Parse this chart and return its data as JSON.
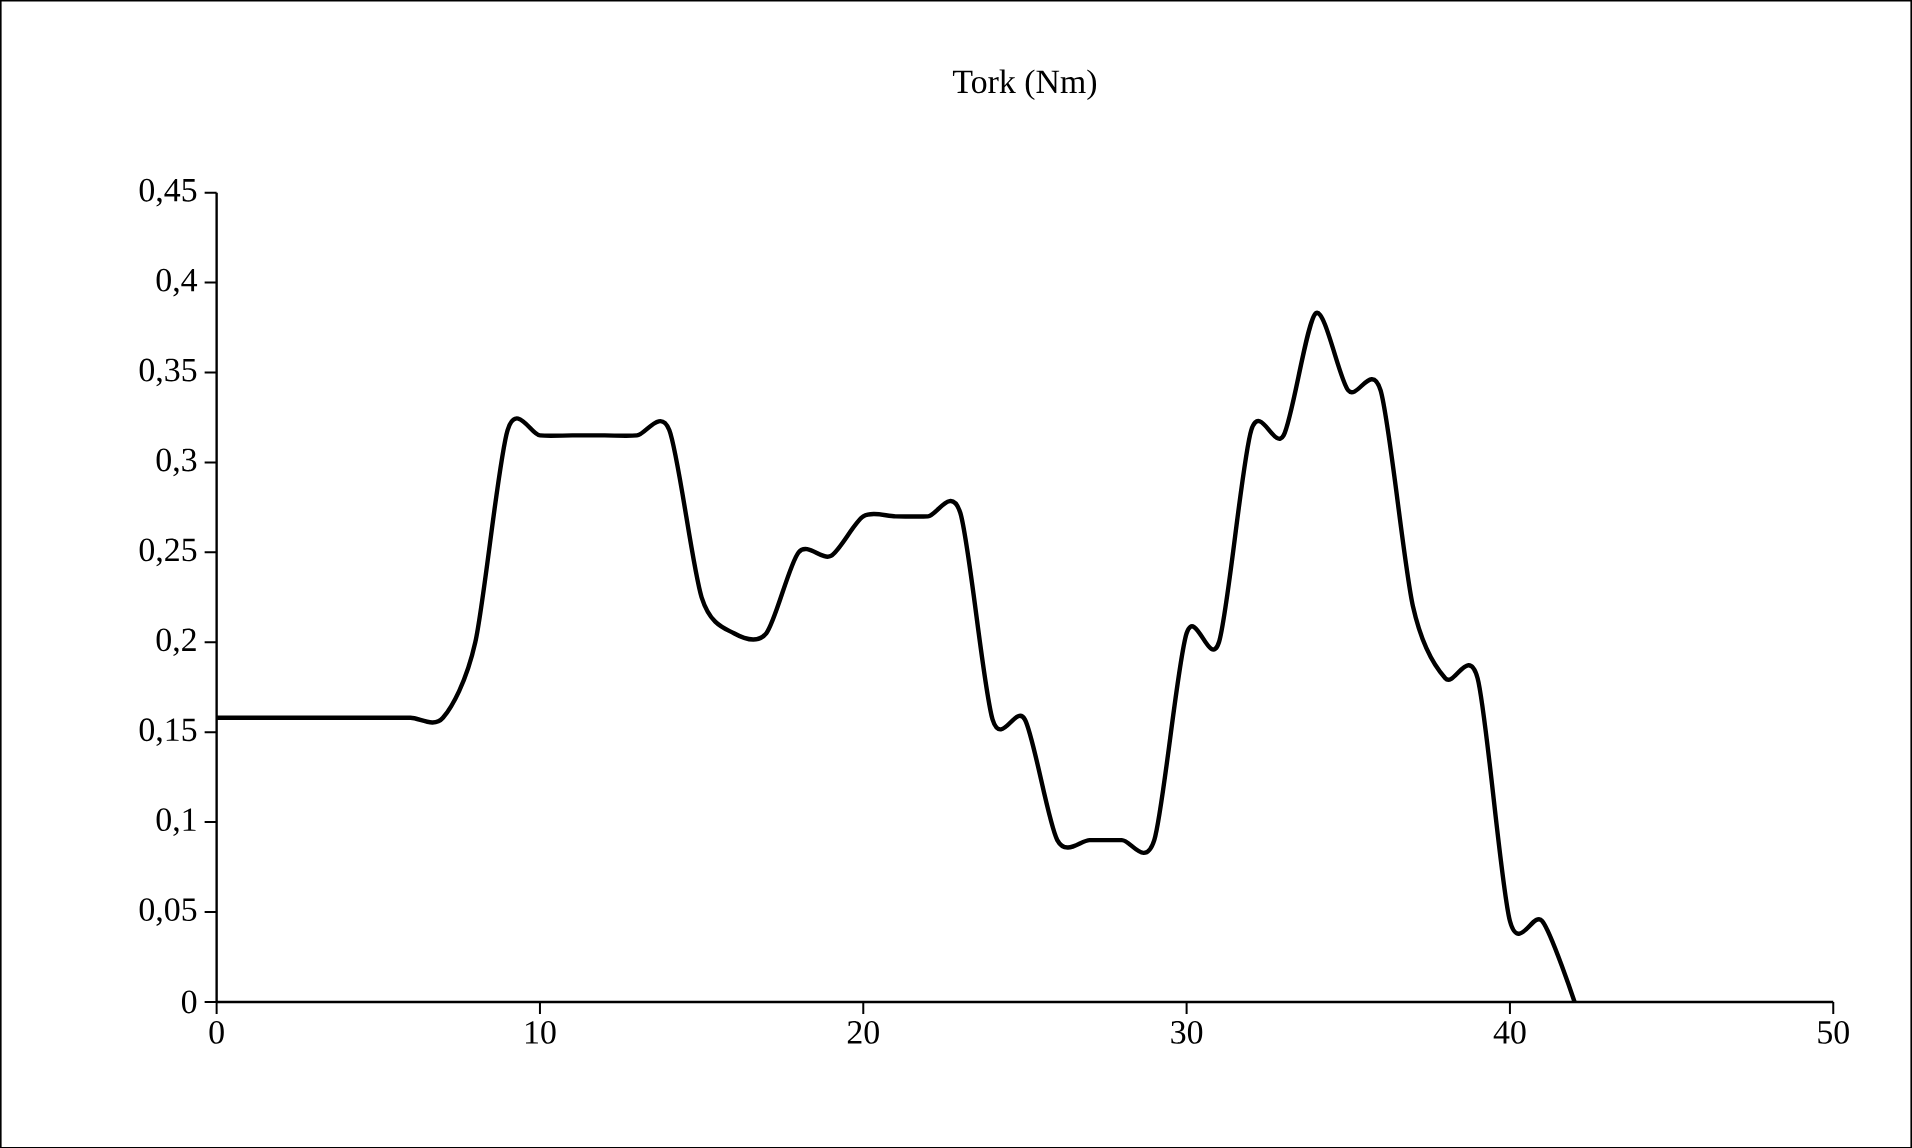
{
  "chart_data": {
    "type": "line",
    "title": "Tork (Nm)",
    "x": [
      0,
      1,
      2,
      3,
      4,
      5,
      6,
      7,
      8,
      9,
      10,
      11,
      12,
      13,
      14,
      15,
      16,
      17,
      18,
      19,
      20,
      21,
      22,
      23,
      24,
      25,
      26,
      27,
      28,
      29,
      30,
      31,
      32,
      33,
      34,
      35,
      36,
      37,
      38,
      39,
      40,
      41,
      42
    ],
    "series": [
      {
        "color": "#000000",
        "values": [
          0.158,
          0.158,
          0.158,
          0.158,
          0.158,
          0.158,
          0.158,
          0.158,
          0.2,
          0.318,
          0.315,
          0.315,
          0.315,
          0.315,
          0.318,
          0.225,
          0.205,
          0.205,
          0.25,
          0.248,
          0.27,
          0.27,
          0.27,
          0.272,
          0.157,
          0.157,
          0.09,
          0.09,
          0.09,
          0.09,
          0.205,
          0.2,
          0.318,
          0.315,
          0.383,
          0.34,
          0.34,
          0.22,
          0.18,
          0.18,
          0.045,
          0.045,
          0
        ]
      }
    ],
    "xlim": [
      0,
      50
    ],
    "xticks": [
      0,
      10,
      20,
      30,
      40,
      50
    ],
    "ylim": [
      0,
      0.45
    ],
    "yticks": [
      0,
      {
        "value": 0.05,
        "label": "0,05"
      },
      {
        "value": 0.1,
        "label": "0,1"
      },
      {
        "value": 0.15,
        "label": "0,15"
      },
      {
        "value": 0.2,
        "label": "0,2"
      },
      {
        "value": 0.25,
        "label": "0,25"
      },
      {
        "value": 0.3,
        "label": "0,3"
      },
      {
        "value": 0.35,
        "label": "0,35"
      },
      {
        "value": 0.4,
        "label": "0,4"
      },
      {
        "value": 0.45,
        "label": "0,45"
      }
    ],
    "grid": false,
    "marker": "none",
    "line_style": "solid"
  }
}
